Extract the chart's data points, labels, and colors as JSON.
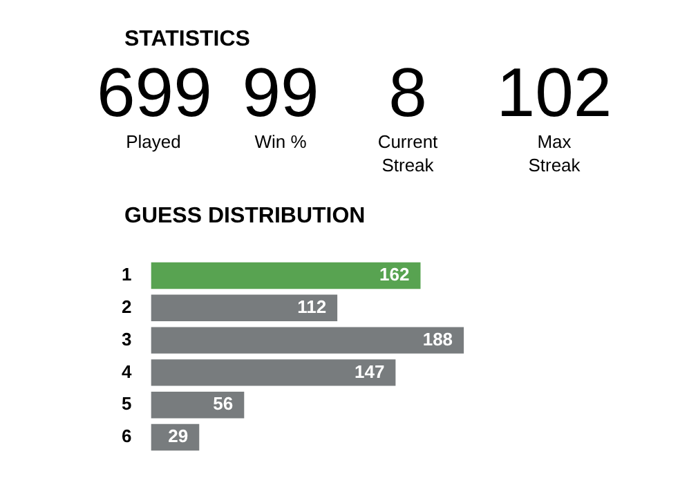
{
  "chart_data": [
    {
      "type": "other",
      "title": "STATISTICS",
      "annotations": [
        "699",
        "Played",
        "99",
        "Win %",
        "8",
        "Current Streak",
        "102",
        "Max Streak"
      ]
    },
    {
      "type": "bar",
      "title": "GUESS DISTRIBUTION",
      "orientation": "horizontal",
      "categories": [
        "1",
        "2",
        "3",
        "4",
        "5",
        "6"
      ],
      "values": [
        162,
        112,
        188,
        147,
        56,
        29
      ],
      "colors": [
        "#58a351",
        "#787c7e",
        "#787c7e",
        "#787c7e",
        "#787c7e",
        "#787c7e"
      ],
      "data_labels": true
    }
  ]
}
